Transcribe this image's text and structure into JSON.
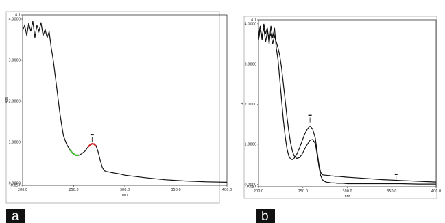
{
  "chart_data": [
    {
      "type": "line",
      "panel_label": "a",
      "xlabel": "nm",
      "ylabel": "Abs",
      "xlim": [
        200,
        400
      ],
      "ylim": [
        -0.057,
        4.1
      ],
      "x_ticks": [
        "200.0",
        "250.0",
        "300.0",
        "350.0",
        "400.0"
      ],
      "y_ticks": [
        "-0.057",
        "0.0000",
        "1.0000",
        "2.0000",
        "3.0000",
        "4.0000",
        "4.1"
      ],
      "y_tick_values": [
        -0.057,
        0,
        1,
        2,
        3,
        4,
        4.1
      ],
      "series": [
        {
          "color": "#111111",
          "x": [
            200,
            202,
            204,
            206,
            208,
            210,
            212,
            214,
            216,
            218,
            220,
            222,
            224,
            226,
            228,
            230,
            232,
            234,
            236,
            238,
            240,
            243,
            246,
            249,
            252,
            255,
            258,
            261,
            264,
            266,
            268,
            270,
            272,
            274,
            276,
            278,
            280,
            282,
            284,
            286,
            288,
            290,
            295,
            300,
            320,
            340,
            360,
            380,
            400
          ],
          "y": [
            3.72,
            3.85,
            3.6,
            3.9,
            3.7,
            3.95,
            3.55,
            3.85,
            3.7,
            3.92,
            3.6,
            3.75,
            3.55,
            3.7,
            3.3,
            3.0,
            2.6,
            2.2,
            1.8,
            1.45,
            1.15,
            0.95,
            0.82,
            0.73,
            0.68,
            0.68,
            0.72,
            0.78,
            0.88,
            0.93,
            0.96,
            0.95,
            0.9,
            0.75,
            0.55,
            0.38,
            0.3,
            0.28,
            0.27,
            0.26,
            0.25,
            0.24,
            0.22,
            0.19,
            0.13,
            0.08,
            0.05,
            0.03,
            0.02
          ]
        }
      ],
      "highlights": [
        {
          "color": "#44bb33",
          "x": [
            246,
            249,
            252,
            255
          ],
          "y": [
            0.82,
            0.73,
            0.68,
            0.68
          ]
        },
        {
          "color": "#cc2222",
          "x": [
            264,
            266,
            268,
            270,
            272
          ],
          "y": [
            0.88,
            0.93,
            0.96,
            0.95,
            0.9
          ]
        }
      ],
      "peak_marker": {
        "x": 268,
        "y": 0.96
      }
    },
    {
      "type": "line",
      "panel_label": "b",
      "xlabel": "nm",
      "ylabel": "A",
      "xlim": [
        200,
        400
      ],
      "ylim": [
        -0.057,
        4.1
      ],
      "x_ticks": [
        "200.0",
        "250.0",
        "300.0",
        "350.0",
        "400.0"
      ],
      "y_ticks": [
        "-0.057",
        "0.0000",
        "1.0000",
        "2.0000",
        "3.0000",
        "4.0000",
        "4.1"
      ],
      "y_tick_values": [
        -0.057,
        0,
        1,
        2,
        3,
        4,
        4.1
      ],
      "series": [
        {
          "color": "#111111",
          "x": [
            200,
            202,
            204,
            206,
            208,
            210,
            212,
            214,
            216,
            218,
            220,
            222,
            224,
            226,
            228,
            230,
            232,
            234,
            236,
            238,
            240,
            243,
            246,
            249,
            252,
            255,
            258,
            261,
            264,
            266,
            268,
            270,
            272,
            274,
            276,
            278,
            280,
            282,
            284,
            286,
            288,
            290,
            295,
            300,
            320,
            340,
            360,
            380,
            400
          ],
          "y": [
            3.7,
            3.95,
            3.6,
            4.0,
            3.75,
            3.9,
            3.5,
            3.95,
            3.65,
            3.9,
            3.4,
            3.1,
            2.6,
            2.1,
            1.6,
            1.2,
            0.9,
            0.72,
            0.64,
            0.62,
            0.65,
            0.75,
            0.9,
            1.08,
            1.25,
            1.38,
            1.45,
            1.38,
            1.15,
            0.82,
            0.5,
            0.3,
            0.24,
            0.23,
            0.23,
            0.22,
            0.22,
            0.21,
            0.21,
            0.2,
            0.2,
            0.2,
            0.19,
            0.18,
            0.15,
            0.12,
            0.1,
            0.08,
            0.06
          ]
        },
        {
          "color": "#111111",
          "x": [
            200,
            202,
            204,
            206,
            208,
            210,
            212,
            214,
            216,
            218,
            220,
            222,
            224,
            226,
            228,
            230,
            232,
            234,
            236,
            238,
            240,
            243,
            246,
            249,
            252,
            255,
            258,
            261,
            264,
            266,
            268,
            270,
            272,
            274,
            276,
            278,
            280,
            282,
            284,
            286,
            288,
            290,
            295,
            300,
            320,
            340,
            360,
            380,
            400
          ],
          "y": [
            3.6,
            3.85,
            3.7,
            3.9,
            3.55,
            3.8,
            3.65,
            3.75,
            3.5,
            3.7,
            3.55,
            3.4,
            3.2,
            2.9,
            2.5,
            2.1,
            1.7,
            1.35,
            1.05,
            0.85,
            0.72,
            0.65,
            0.67,
            0.75,
            0.88,
            1.0,
            1.1,
            1.12,
            1.02,
            0.75,
            0.45,
            0.22,
            0.12,
            0.08,
            0.06,
            0.05,
            0.05,
            0.04,
            0.04,
            0.04,
            0.03,
            0.03,
            0.03,
            0.02,
            0.02,
            0.02,
            0.02,
            0.01,
            0.01
          ]
        }
      ],
      "peak_marker": {
        "x": 258,
        "y": 1.5
      },
      "extra_marker": {
        "x": 355,
        "y": 0.08
      }
    }
  ]
}
